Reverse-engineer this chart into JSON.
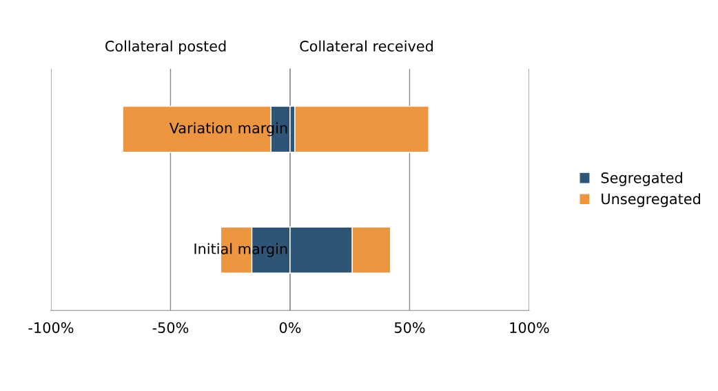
{
  "chart_data": {
    "type": "bar",
    "orientation": "horizontal",
    "stacked": true,
    "categories": [
      "Variation margin",
      "Initial margin"
    ],
    "series": [
      {
        "name": "Segregated",
        "color": "#2e5575",
        "values": [
          -8,
          -16
        ]
      },
      {
        "name": "Unsegregated",
        "color": "#ed963f",
        "values": [
          -62,
          -13
        ]
      },
      {
        "color": "#2e5575",
        "values": [
          2,
          26
        ]
      },
      {
        "color": "#ed963f",
        "values": [
          56,
          16
        ]
      }
    ],
    "xlim": [
      -100,
      100
    ],
    "xticks": [
      {
        "value": -100,
        "label": "-100%"
      },
      {
        "value": -50,
        "label": "-50%"
      },
      {
        "value": 0,
        "label": "0%"
      },
      {
        "value": 50,
        "label": "50%"
      },
      {
        "value": 100,
        "label": "100%"
      }
    ],
    "grid": "x",
    "legend": "right",
    "annotations": [
      "Collateral posted",
      "Collateral received"
    ]
  }
}
